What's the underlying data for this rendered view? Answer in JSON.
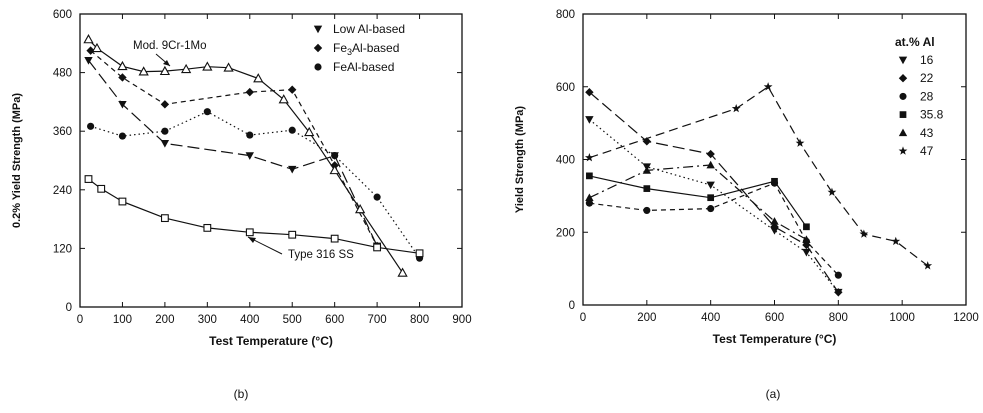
{
  "chart_data": [
    {
      "type": "line",
      "caption": "(b)",
      "xlabel": "Test Temperature (°C)",
      "ylabel": "0.2% Yield Strength (MPa)",
      "xlim": [
        0,
        900
      ],
      "ylim": [
        0,
        600
      ],
      "xticks": [
        0,
        100,
        200,
        300,
        400,
        500,
        600,
        700,
        800,
        900
      ],
      "yticks": [
        0,
        120,
        240,
        360,
        480,
        600
      ],
      "grid": false,
      "legend_position": "top-right",
      "legend": [
        "Low Al-based",
        "Fe3Al-based",
        "FeAl-based"
      ],
      "annotations": [
        "Mod. 9Cr-1Mo",
        "Type 316 SS"
      ],
      "series": [
        {
          "name": "Low Al-based",
          "marker": "triangle-down",
          "line": "long-dash",
          "points": [
            [
              20,
              505
            ],
            [
              100,
              415
            ],
            [
              200,
              335
            ],
            [
              400,
              310
            ],
            [
              500,
              282
            ],
            [
              600,
              310
            ],
            [
              700,
              125
            ]
          ]
        },
        {
          "name": "Fe3Al-based",
          "marker": "diamond",
          "line": "short-dash",
          "points": [
            [
              25,
              525
            ],
            [
              100,
              470
            ],
            [
              200,
              415
            ],
            [
              400,
              440
            ],
            [
              500,
              445
            ],
            [
              600,
              290
            ],
            [
              700,
              125
            ]
          ]
        },
        {
          "name": "FeAl-based",
          "marker": "circle",
          "line": "dotted",
          "points": [
            [
              25,
              370
            ],
            [
              100,
              350
            ],
            [
              200,
              360
            ],
            [
              300,
              400
            ],
            [
              400,
              352
            ],
            [
              500,
              362
            ],
            [
              600,
              310
            ],
            [
              700,
              225
            ],
            [
              800,
              100
            ]
          ]
        },
        {
          "name": "Mod. 9Cr-1Mo",
          "marker": "triangle-open",
          "line": "solid",
          "points": [
            [
              20,
              548
            ],
            [
              40,
              530
            ],
            [
              100,
              493
            ],
            [
              150,
              482
            ],
            [
              200,
              483
            ],
            [
              250,
              487
            ],
            [
              300,
              492
            ],
            [
              350,
              490
            ],
            [
              420,
              468
            ],
            [
              480,
              425
            ],
            [
              540,
              358
            ],
            [
              600,
              280
            ],
            [
              660,
              200
            ],
            [
              760,
              70
            ]
          ]
        },
        {
          "name": "Type 316 SS",
          "marker": "square-open",
          "line": "solid",
          "points": [
            [
              20,
              262
            ],
            [
              50,
              242
            ],
            [
              100,
              216
            ],
            [
              200,
              182
            ],
            [
              300,
              162
            ],
            [
              400,
              153
            ],
            [
              500,
              148
            ],
            [
              600,
              140
            ],
            [
              700,
              122
            ],
            [
              800,
              110
            ]
          ]
        }
      ]
    },
    {
      "type": "line",
      "caption": "(a)",
      "xlabel": "Test Temperature (°C)",
      "ylabel": "Yield Strength (MPa)",
      "xlim": [
        0,
        1200
      ],
      "ylim": [
        0,
        800
      ],
      "xticks": [
        0,
        200,
        400,
        600,
        800,
        1000,
        1200
      ],
      "yticks": [
        0,
        200,
        400,
        600,
        800
      ],
      "grid": false,
      "legend_position": "top-right",
      "legend_title": "at.% Al",
      "series": [
        {
          "name": "16",
          "marker": "triangle-down",
          "line": "dotted",
          "points": [
            [
              20,
              510
            ],
            [
              200,
              380
            ],
            [
              400,
              330
            ],
            [
              600,
              205
            ],
            [
              700,
              145
            ],
            [
              800,
              35
            ]
          ]
        },
        {
          "name": "22",
          "marker": "diamond",
          "line": "long-dash",
          "points": [
            [
              20,
              585
            ],
            [
              200,
              450
            ],
            [
              400,
              415
            ],
            [
              600,
              215
            ],
            [
              700,
              165
            ],
            [
              800,
              35
            ]
          ]
        },
        {
          "name": "28",
          "marker": "circle",
          "line": "short-dash",
          "points": [
            [
              20,
              280
            ],
            [
              200,
              260
            ],
            [
              400,
              265
            ],
            [
              600,
              335
            ],
            [
              700,
              175
            ],
            [
              800,
              82
            ]
          ]
        },
        {
          "name": "35.8",
          "marker": "square",
          "line": "solid",
          "points": [
            [
              20,
              355
            ],
            [
              200,
              320
            ],
            [
              400,
              295
            ],
            [
              600,
              340
            ],
            [
              700,
              215
            ]
          ]
        },
        {
          "name": "43",
          "marker": "triangle-up",
          "line": "dash-dot",
          "points": [
            [
              20,
              295
            ],
            [
              200,
              370
            ],
            [
              400,
              385
            ],
            [
              600,
              230
            ],
            [
              700,
              180
            ]
          ]
        },
        {
          "name": "47",
          "marker": "star",
          "line": "dash",
          "points": [
            [
              20,
              405
            ],
            [
              480,
              540
            ],
            [
              580,
              600
            ],
            [
              680,
              445
            ],
            [
              780,
              310
            ],
            [
              880,
              195
            ],
            [
              980,
              175
            ],
            [
              1080,
              108
            ]
          ]
        }
      ]
    }
  ]
}
